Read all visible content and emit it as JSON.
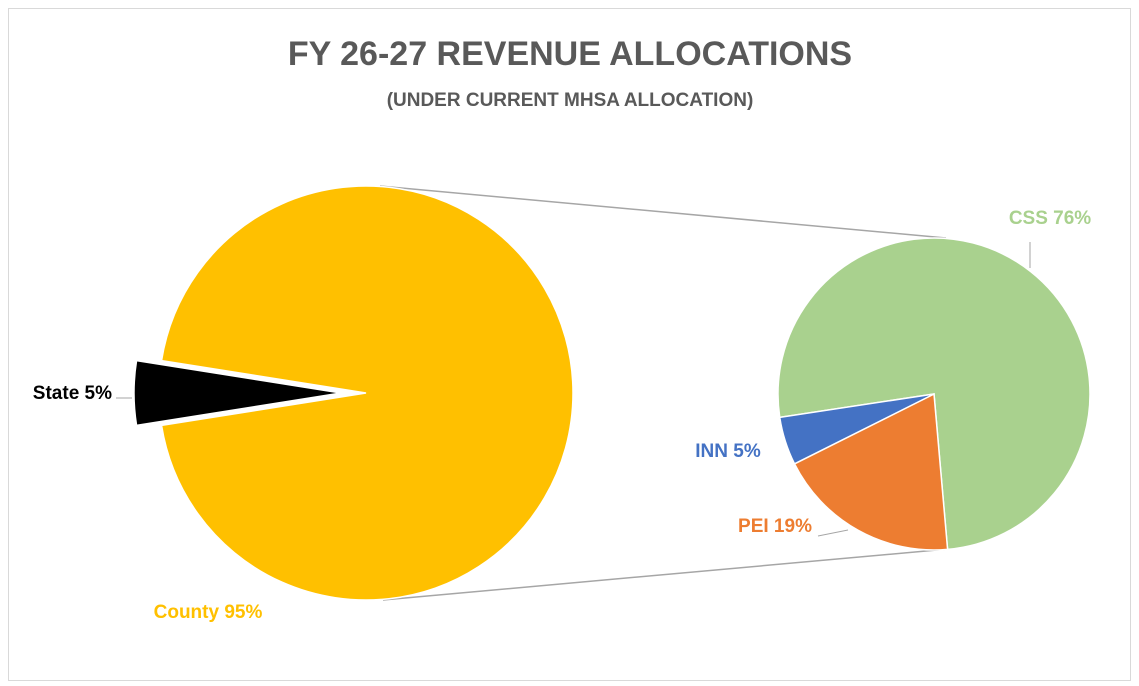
{
  "chart_data": [
    {
      "type": "pie",
      "title": "FY 26-27 REVENUE ALLOCATIONS",
      "subtitle": "(UNDER CURRENT MHSA ALLOCATION)",
      "values": [
        95,
        5
      ],
      "value_labels": [
        "County 95%",
        "State 5%"
      ],
      "colors": [
        "#FFC000",
        "#000000"
      ],
      "startangle": 279
    },
    {
      "type": "pie",
      "values": [
        76,
        19,
        5
      ],
      "value_labels": [
        "CSS 76%",
        "PEI 19%",
        "INN 5%"
      ],
      "colors": [
        "#A9D18E",
        "#ED7D31",
        "#4472C4"
      ],
      "startangle": 261.4
    }
  ]
}
